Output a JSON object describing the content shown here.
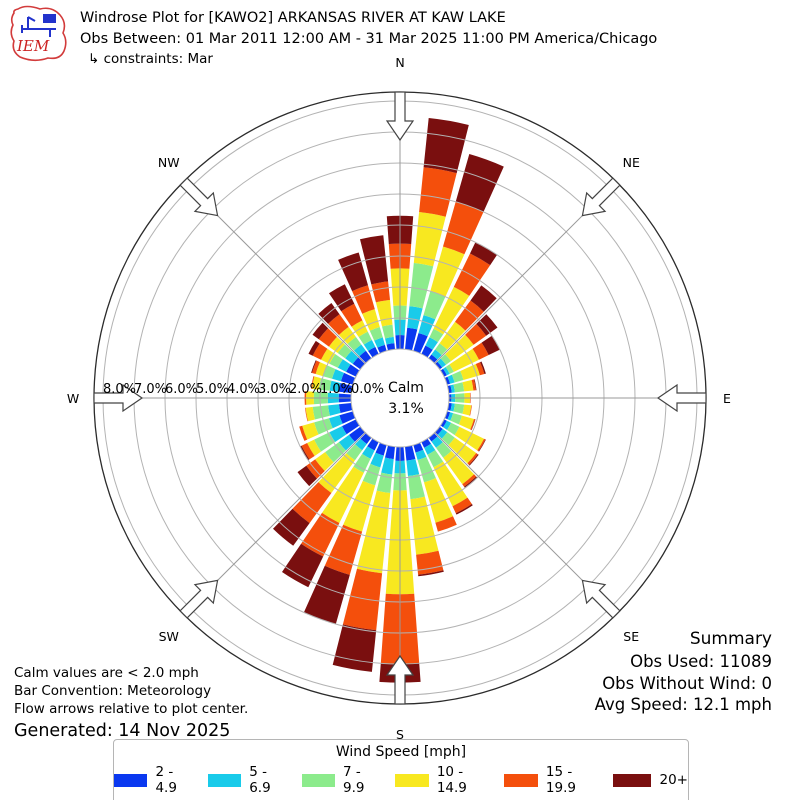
{
  "header": {
    "title": "Windrose Plot for [KAWO2] ARKANSAS RIVER  AT KAW LAKE",
    "subtitle": "Obs Between: 01 Mar 2011 12:00 AM - 31 Mar 2025 11:00 PM America/Chicago",
    "constraints": "↳ constraints: Mar",
    "logo_text": "IEM"
  },
  "plot": {
    "compass_labels": [
      "N",
      "NE",
      "E",
      "SE",
      "S",
      "SW",
      "W",
      "NW"
    ],
    "radial_ticks": [
      "8.0%",
      "7.0%",
      "6.0%",
      "5.0%",
      "4.0%",
      "3.0%",
      "2.0%",
      "1.0%",
      "0.0%"
    ],
    "calm_label": "Calm",
    "calm_value": "3.1%"
  },
  "notes": {
    "line1": "Calm values are < 2.0 mph",
    "line2": "Bar Convention: Meteorology",
    "line3": "Flow arrows relative to plot center.",
    "generated": "Generated: 14 Nov 2025"
  },
  "summary": {
    "title": "Summary",
    "obs_used": "Obs Used: 11089",
    "obs_without_wind": "Obs Without Wind: 0",
    "avg_speed": "Avg Speed: 12.1 mph"
  },
  "legend": {
    "title": "Wind Speed [mph]"
  },
  "chart_data": {
    "type": "windrose",
    "units": "percent frequency of wind direction by speed bin",
    "station": "KAWO2",
    "direction_step_deg": 10,
    "directions_deg": [
      0,
      10,
      20,
      30,
      40,
      50,
      60,
      70,
      80,
      90,
      100,
      110,
      120,
      130,
      140,
      150,
      160,
      170,
      180,
      190,
      200,
      210,
      220,
      230,
      240,
      250,
      260,
      270,
      280,
      290,
      300,
      310,
      320,
      330,
      340,
      350
    ],
    "radial_axis": {
      "min": 0,
      "max": 8,
      "ring_step": 1,
      "tick_labels": [
        "8.0%",
        "7.0%",
        "6.0%",
        "5.0%",
        "4.0%",
        "3.0%",
        "2.0%",
        "1.0%",
        "0.0%"
      ]
    },
    "calm_percent": 3.1,
    "grid": true,
    "legend_position": "bottom",
    "series": [
      {
        "name": "2 - 4.9",
        "color": "#0a38f0",
        "values": [
          0.45,
          0.7,
          0.6,
          0.3,
          0.15,
          0.1,
          0.1,
          0.1,
          0.1,
          0.08,
          0.1,
          0.1,
          0.1,
          0.12,
          0.15,
          0.2,
          0.25,
          0.45,
          0.45,
          0.4,
          0.35,
          0.3,
          0.25,
          0.45,
          0.5,
          0.45,
          0.4,
          0.4,
          0.4,
          0.4,
          0.35,
          0.3,
          0.3,
          0.25,
          0.2,
          0.2
        ]
      },
      {
        "name": "5 - 6.9",
        "color": "#19cbea",
        "values": [
          0.5,
          0.7,
          0.6,
          0.3,
          0.2,
          0.15,
          0.1,
          0.15,
          0.1,
          0.12,
          0.1,
          0.1,
          0.15,
          0.18,
          0.25,
          0.25,
          0.25,
          0.5,
          0.4,
          0.5,
          0.4,
          0.3,
          0.25,
          0.4,
          0.45,
          0.35,
          0.35,
          0.35,
          0.3,
          0.3,
          0.3,
          0.3,
          0.25,
          0.25,
          0.25,
          0.2
        ]
      },
      {
        "name": "7 - 9.9",
        "color": "#8ceb8c",
        "values": [
          0.45,
          1.4,
          0.8,
          0.3,
          0.25,
          0.2,
          0.15,
          0.3,
          0.3,
          0.3,
          0.3,
          0.3,
          0.3,
          0.3,
          0.4,
          0.45,
          0.75,
          0.75,
          0.55,
          0.6,
          0.6,
          0.5,
          0.4,
          0.55,
          0.55,
          0.5,
          0.5,
          0.45,
          0.35,
          0.3,
          0.3,
          0.3,
          0.3,
          0.3,
          0.35,
          0.4
        ]
      },
      {
        "name": "10 - 14.9",
        "color": "#f8e820",
        "values": [
          1.2,
          1.65,
          1.5,
          1.5,
          0.85,
          0.9,
          0.9,
          0.55,
          0.3,
          0.18,
          0.23,
          0.4,
          0.88,
          0.85,
          1.05,
          1.4,
          1.35,
          1.8,
          3.35,
          2.6,
          1.55,
          1.8,
          1.3,
          0.4,
          0.25,
          0.4,
          0.23,
          0.25,
          0.22,
          0.25,
          0.3,
          0.35,
          0.4,
          0.4,
          0.6,
          0.8
        ]
      },
      {
        "name": "15 - 19.9",
        "color": "#f44f0c",
        "values": [
          0.8,
          1.45,
          1.5,
          1.2,
          0.85,
          0.5,
          0.35,
          0.15,
          0.08,
          0.02,
          0.02,
          0.04,
          0.05,
          0.07,
          0.1,
          0.25,
          0.3,
          0.65,
          2.25,
          1.85,
          1.45,
          1.2,
          1.2,
          0.35,
          0.2,
          0.1,
          0.02,
          0.05,
          0.03,
          0.12,
          0.3,
          0.4,
          0.5,
          0.6,
          0.8,
          0.6
        ]
      },
      {
        "name": "20+",
        "color": "#7a0f0f",
        "values": [
          0.9,
          1.6,
          1.6,
          0.4,
          0.6,
          0.45,
          0.4,
          0.05,
          0.02,
          0,
          0,
          0.01,
          0.02,
          0.03,
          0.05,
          0.05,
          0,
          0.05,
          0.6,
          1.35,
          1.65,
          1.1,
          0.9,
          0.35,
          0.05,
          0,
          0,
          0,
          0,
          0.03,
          0.15,
          0.25,
          0.45,
          0.7,
          1.1,
          1.5
        ]
      }
    ]
  }
}
